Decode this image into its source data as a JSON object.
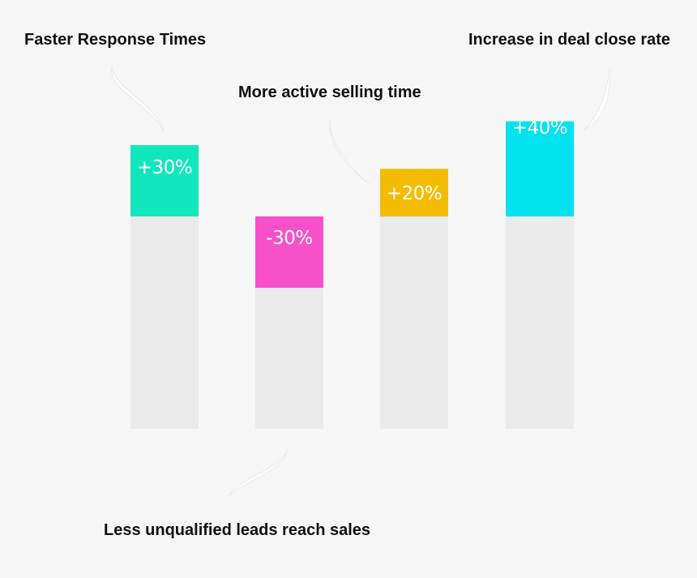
{
  "chart_data": {
    "type": "bar",
    "categories": [
      "Faster Response Times",
      "Less unqualified leads reach sales",
      "More active selling time",
      "Increase in deal close rate"
    ],
    "values": [
      30,
      -30,
      20,
      40
    ],
    "value_labels": [
      "+30%",
      "-30%",
      "+20%",
      "+40%"
    ],
    "colors": [
      "#12e6bd",
      "#f651c9",
      "#f3bc00",
      "#00e3ef"
    ],
    "baseline_color": "#ebebeb",
    "unit": "%",
    "title": "",
    "xlabel": "",
    "ylabel": "",
    "grid": false
  }
}
